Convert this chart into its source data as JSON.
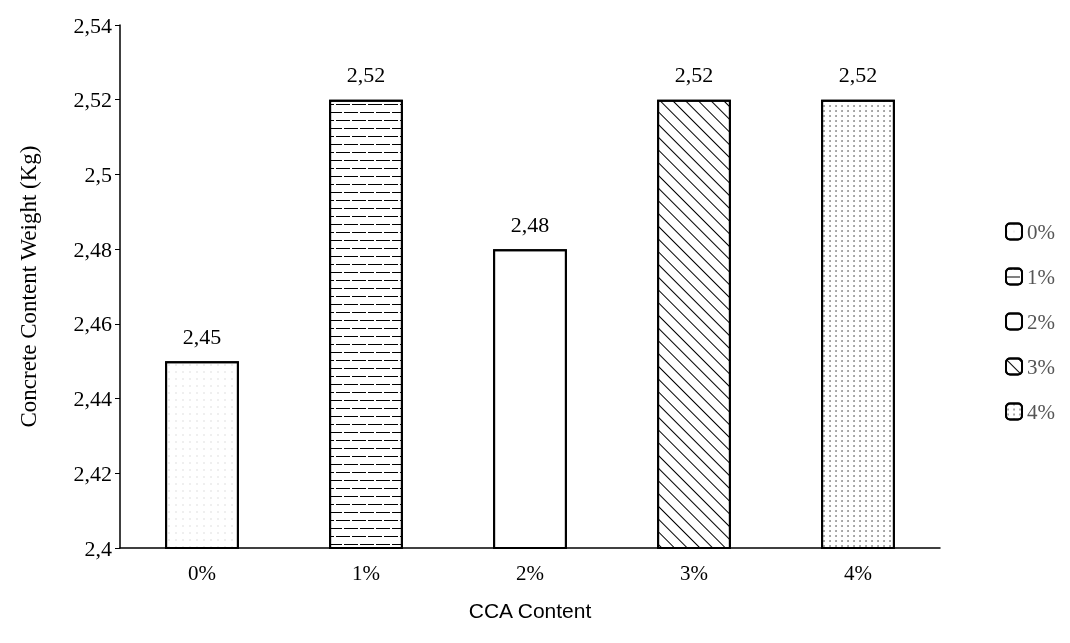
{
  "chart_data": {
    "type": "bar",
    "xlabel": "CCA Content",
    "ylabel": "Concrete Content Weight (Kg)",
    "categories": [
      "0%",
      "1%",
      "2%",
      "3%",
      "4%"
    ],
    "stacked": true,
    "series": [
      {
        "name": "0%",
        "color": "#ffffff",
        "values": [
          2.45,
          null,
          null,
          null,
          null
        ],
        "value_labels": [
          "2,45",
          null,
          null,
          null,
          null
        ]
      },
      {
        "name": "1%",
        "color": "#ffffff",
        "values": [
          null,
          2.52,
          null,
          null,
          null
        ],
        "value_labels": [
          null,
          "2,52",
          null,
          null,
          null
        ]
      },
      {
        "name": "2%",
        "color": "#ffffff",
        "values": [
          null,
          null,
          2.48,
          null,
          null
        ],
        "value_labels": [
          null,
          null,
          "2,48",
          null,
          null
        ]
      },
      {
        "name": "3%",
        "color": "#ffffff",
        "values": [
          null,
          null,
          null,
          2.52,
          null
        ],
        "value_labels": [
          null,
          null,
          null,
          "2,52",
          null
        ]
      },
      {
        "name": "4%",
        "color": "#ffffff",
        "values": [
          null,
          null,
          null,
          null,
          2.52
        ],
        "value_labels": [
          null,
          null,
          null,
          null,
          "2,52"
        ]
      }
    ],
    "ylim": [
      2.4,
      2.54
    ],
    "yticks": [
      {
        "value": 2.4,
        "label": "2,4"
      },
      {
        "value": 2.42,
        "label": "2,42"
      },
      {
        "value": 2.44,
        "label": "2,44"
      },
      {
        "value": 2.46,
        "label": "2,46"
      },
      {
        "value": 2.48,
        "label": "2,48"
      },
      {
        "value": 2.5,
        "label": "2,5"
      },
      {
        "value": 2.52,
        "label": "2,52"
      },
      {
        "value": 2.54,
        "label": "2,54"
      }
    ],
    "grid": false,
    "legend": "right"
  }
}
